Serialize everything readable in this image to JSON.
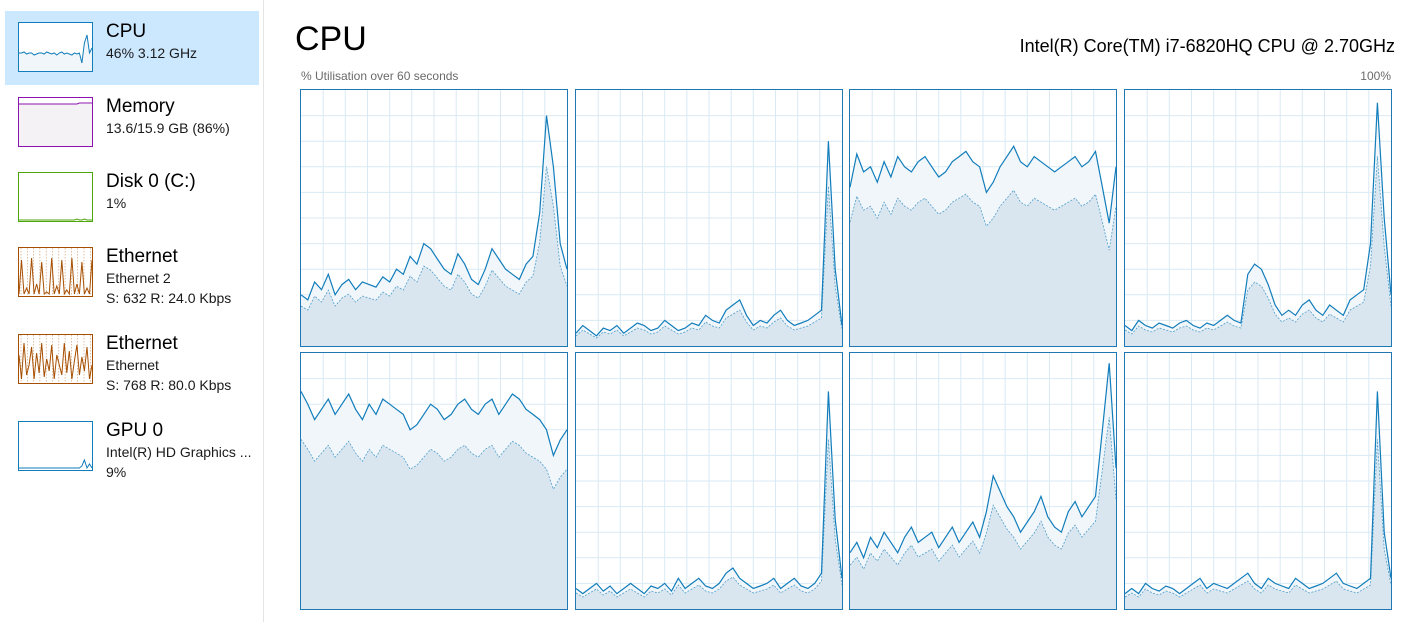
{
  "sidebar": {
    "items": [
      {
        "title": "CPU",
        "line1": "46%  3.12 GHz",
        "line2": "",
        "selected": true,
        "color": "#117dbb",
        "fill": "#f1f6fa"
      },
      {
        "title": "Memory",
        "line1": "13.6/15.9 GB (86%)",
        "line2": "",
        "color": "#8b12ae",
        "fill": "#f4f2f4"
      },
      {
        "title": "Disk 0 (C:)",
        "line1": "1%",
        "line2": "",
        "color": "#4da60c",
        "fill": "#ffffff"
      },
      {
        "title": "Ethernet",
        "line1": "Ethernet 2",
        "line2": "S: 632  R: 24.0 Kbps",
        "color": "#a74f01",
        "fill": "#ffffff"
      },
      {
        "title": "Ethernet",
        "line1": "Ethernet",
        "line2": "S: 768  R: 80.0 Kbps",
        "color": "#a74f01",
        "fill": "#ffffff"
      },
      {
        "title": "GPU 0",
        "line1": "Intel(R) HD Graphics ...",
        "line2": "9%",
        "color": "#117dbb",
        "fill": "#ffffff"
      }
    ]
  },
  "header": {
    "title": "CPU",
    "cpu_name": "Intel(R) Core(TM) i7-6820HQ CPU @ 2.70GHz",
    "util_label": "% Utilisation over 60 seconds",
    "max_label": "100%"
  },
  "colors": {
    "line": "#117dbb",
    "fill": "#d9e6ef",
    "grid": "#d9eaf4",
    "border": "#1f77b4",
    "selected_bg": "#cce8ff"
  },
  "cores": [
    {
      "values": [
        20,
        18,
        25,
        22,
        28,
        20,
        24,
        26,
        22,
        25,
        24,
        23,
        27,
        25,
        30,
        28,
        35,
        32,
        40,
        38,
        34,
        30,
        28,
        36,
        32,
        26,
        24,
        30,
        38,
        34,
        30,
        28,
        26,
        32,
        35,
        52,
        90,
        70,
        40,
        30
      ]
    },
    {
      "values": [
        5,
        8,
        6,
        4,
        7,
        6,
        8,
        5,
        7,
        9,
        8,
        6,
        7,
        10,
        8,
        6,
        7,
        9,
        8,
        12,
        10,
        9,
        14,
        16,
        18,
        12,
        8,
        10,
        9,
        12,
        14,
        10,
        8,
        9,
        10,
        12,
        14,
        80,
        30,
        8
      ]
    },
    {
      "values": [
        62,
        75,
        68,
        70,
        64,
        72,
        66,
        74,
        70,
        68,
        72,
        74,
        70,
        66,
        68,
        72,
        74,
        76,
        72,
        70,
        60,
        64,
        70,
        74,
        78,
        72,
        70,
        74,
        72,
        70,
        68,
        70,
        72,
        74,
        70,
        72,
        76,
        62,
        48,
        70
      ]
    },
    {
      "values": [
        8,
        6,
        10,
        8,
        7,
        9,
        8,
        7,
        9,
        10,
        8,
        7,
        9,
        8,
        10,
        12,
        10,
        9,
        28,
        32,
        30,
        24,
        16,
        12,
        14,
        12,
        16,
        18,
        14,
        12,
        16,
        14,
        12,
        18,
        20,
        22,
        40,
        95,
        50,
        20
      ]
    },
    {
      "values": [
        85,
        80,
        74,
        78,
        82,
        76,
        80,
        84,
        78,
        74,
        80,
        76,
        82,
        80,
        78,
        76,
        70,
        72,
        76,
        80,
        78,
        74,
        76,
        80,
        82,
        78,
        76,
        80,
        82,
        76,
        80,
        84,
        82,
        78,
        76,
        74,
        70,
        60,
        66,
        70
      ]
    },
    {
      "values": [
        8,
        6,
        8,
        10,
        7,
        9,
        6,
        8,
        10,
        8,
        6,
        9,
        8,
        10,
        7,
        12,
        8,
        10,
        12,
        9,
        8,
        10,
        14,
        16,
        12,
        10,
        8,
        9,
        10,
        12,
        8,
        10,
        12,
        9,
        8,
        10,
        14,
        85,
        35,
        12
      ]
    },
    {
      "values": [
        22,
        26,
        20,
        28,
        24,
        30,
        26,
        22,
        28,
        32,
        26,
        28,
        30,
        24,
        28,
        32,
        26,
        30,
        34,
        28,
        38,
        52,
        46,
        40,
        36,
        30,
        34,
        38,
        44,
        36,
        32,
        30,
        38,
        42,
        36,
        40,
        44,
        70,
        96,
        55
      ]
    },
    {
      "values": [
        6,
        8,
        6,
        10,
        8,
        7,
        9,
        8,
        6,
        8,
        10,
        12,
        8,
        10,
        9,
        8,
        10,
        12,
        14,
        10,
        8,
        12,
        10,
        9,
        8,
        12,
        10,
        8,
        9,
        10,
        12,
        14,
        10,
        9,
        8,
        10,
        12,
        85,
        30,
        12
      ]
    }
  ]
}
